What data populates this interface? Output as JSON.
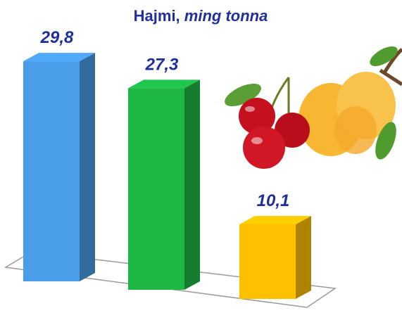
{
  "chart_data": {
    "type": "bar3d",
    "title": "Hajmi,",
    "unit": "ming tonna",
    "categories": [
      null,
      null,
      null
    ],
    "values": [
      29.8,
      27.3,
      10.1
    ],
    "value_labels": [
      "29,8",
      "27,3",
      "10,1"
    ],
    "colors": [
      "#4a9de8",
      "#1fb846",
      "#ffc000"
    ]
  }
}
